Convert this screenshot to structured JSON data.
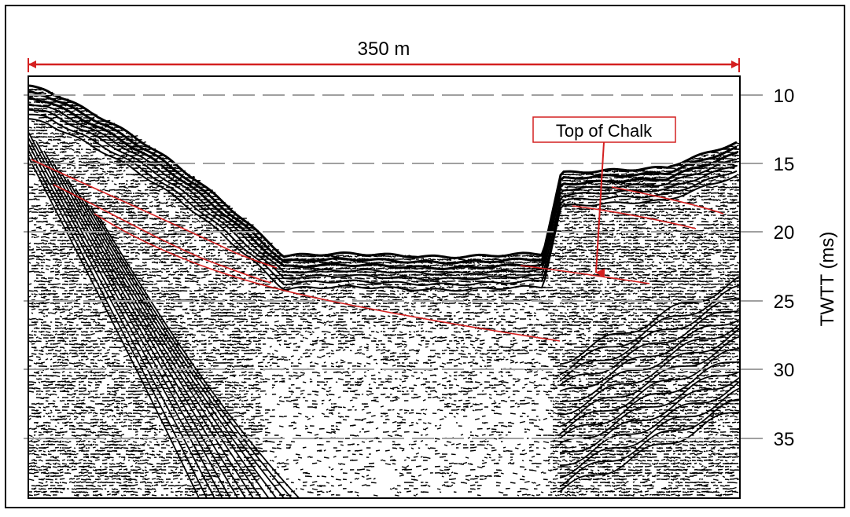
{
  "scale_bar": {
    "label": "350 m"
  },
  "annotation": {
    "label": "Top of Chalk"
  },
  "y_axis": {
    "label": "TWTT (ms)",
    "ticks": [
      "10",
      "15",
      "20",
      "25",
      "30",
      "35"
    ]
  },
  "colors": {
    "frame": "#000000",
    "scale_bar": "#d42020",
    "interpretation_lines": "#d42020",
    "gridlines": "#a0a0a0",
    "seismic": "#000000",
    "background": "#ffffff"
  }
}
